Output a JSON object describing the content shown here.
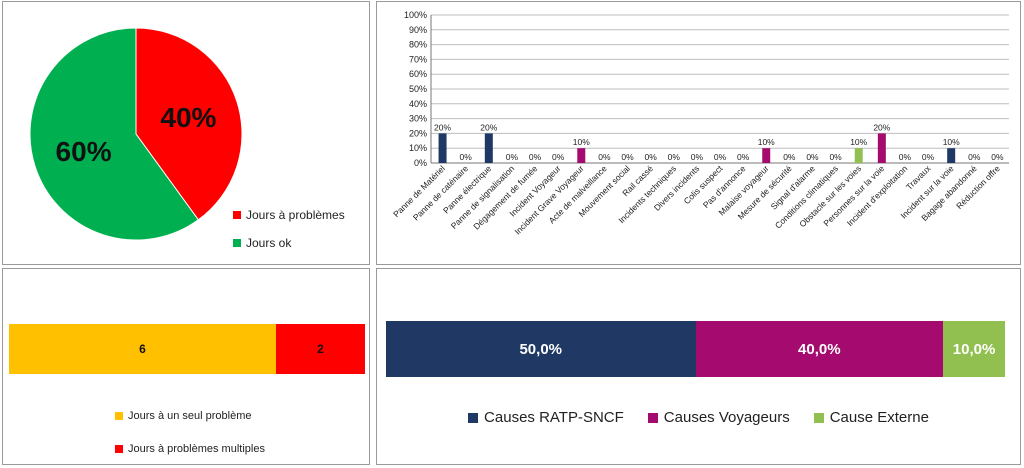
{
  "chart_data": [
    {
      "type": "pie",
      "slices": [
        {
          "label": "Jours à problèmes",
          "value": 40,
          "display": "40%",
          "color": "#ff0000"
        },
        {
          "label": "Jours ok",
          "value": 60,
          "display": "60%",
          "color": "#00b050"
        }
      ],
      "legend": "right"
    },
    {
      "type": "bar",
      "categories": [
        "Panne de Matériel",
        "Panne de caténaire",
        "Panne électrique",
        "Panne de signalisation",
        "Dégagement de fumée",
        "Incident Voyageur",
        "Incident Grave Voyageur",
        "Acte de malveillance",
        "Mouvement social",
        "Rail cassé",
        "Incidents techniques",
        "Divers incidents",
        "Colis suspect",
        "Pas d'annonce",
        "Malaise voyageur",
        "Mesure de sécurité",
        "Signal d'alarme",
        "Conditions climatiques",
        "Obstacle sur les voies",
        "Personnes sur la voie",
        "Incident d'exploitation",
        "Travaux",
        "Incident sur la voie",
        "Bagage abandonné",
        "Réduction offre"
      ],
      "values": [
        20,
        0,
        20,
        0,
        0,
        0,
        10,
        0,
        0,
        0,
        0,
        0,
        0,
        0,
        10,
        0,
        0,
        0,
        10,
        20,
        0,
        0,
        10,
        0,
        0
      ],
      "value_labels": [
        "20%",
        "0%",
        "20%",
        "0%",
        "0%",
        "0%",
        "10%",
        "0%",
        "0%",
        "0%",
        "0%",
        "0%",
        "0%",
        "0%",
        "10%",
        "0%",
        "0%",
        "0%",
        "10%",
        "20%",
        "0%",
        "0%",
        "10%",
        "0%",
        "0%"
      ],
      "bar_colors": [
        "#1f3864",
        "#1f3864",
        "#1f3864",
        "#1f3864",
        "#1f3864",
        "#1f3864",
        "#a50b6e",
        "#1f3864",
        "#1f3864",
        "#1f3864",
        "#1f3864",
        "#1f3864",
        "#1f3864",
        "#1f3864",
        "#a50b6e",
        "#1f3864",
        "#1f3864",
        "#1f3864",
        "#92c050",
        "#a50b6e",
        "#1f3864",
        "#1f3864",
        "#1f3864",
        "#1f3864",
        "#1f3864"
      ],
      "ylim": [
        0,
        100
      ],
      "yticks": [
        "0%",
        "10%",
        "20%",
        "30%",
        "40%",
        "50%",
        "60%",
        "70%",
        "80%",
        "90%",
        "100%"
      ],
      "grid": true
    },
    {
      "type": "bar",
      "orientation": "horizontal-stacked",
      "segments": [
        {
          "label": "Jours à un seul problème",
          "value": 6,
          "display": "6",
          "color": "#ffc000"
        },
        {
          "label": "Jours à problèmes multiples",
          "value": 2,
          "display": "2",
          "color": "#ff0000"
        }
      ],
      "legend": "bottom"
    },
    {
      "type": "bar",
      "orientation": "horizontal-stacked",
      "segments": [
        {
          "label": "Causes RATP-SNCF",
          "value": 50,
          "display": "50,0%",
          "color": "#1f3864"
        },
        {
          "label": "Causes Voyageurs",
          "value": 40,
          "display": "40,0%",
          "color": "#a50b6e"
        },
        {
          "label": "Cause Externe",
          "value": 10,
          "display": "10,0%",
          "color": "#92c050"
        }
      ],
      "legend": "bottom"
    }
  ]
}
